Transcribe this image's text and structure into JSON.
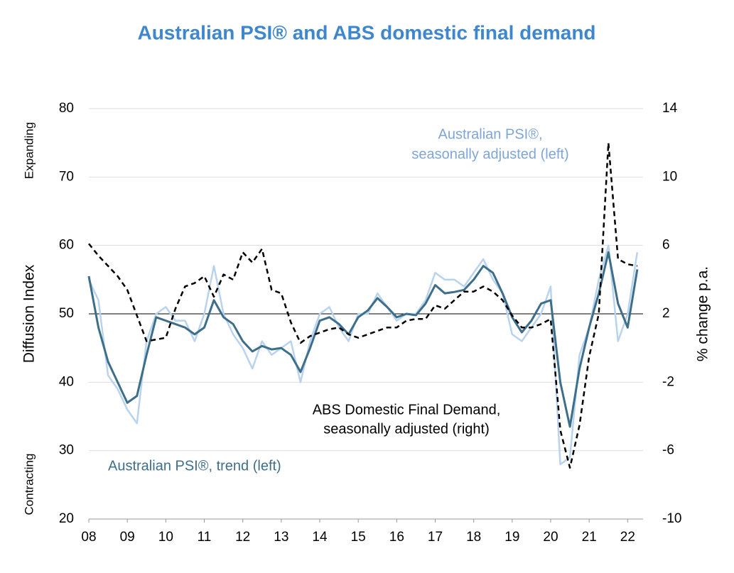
{
  "chart_data": {
    "type": "line",
    "title": "Australian PSI® and ABS domestic final demand",
    "y_label": "Diffusion Index",
    "y2_label": "% change p.a.",
    "side_labels": [
      "Expanding",
      "Contracting"
    ],
    "x": [
      2008,
      2008.25,
      2008.5,
      2008.75,
      2009,
      2009.25,
      2009.5,
      2009.75,
      2010,
      2010.25,
      2010.5,
      2010.75,
      2011,
      2011.25,
      2011.5,
      2011.75,
      2012,
      2012.25,
      2012.5,
      2012.75,
      2013,
      2013.25,
      2013.5,
      2013.75,
      2014,
      2014.25,
      2014.5,
      2014.75,
      2015,
      2015.25,
      2015.5,
      2015.75,
      2016,
      2016.25,
      2016.5,
      2016.75,
      2017,
      2017.25,
      2017.5,
      2017.75,
      2018,
      2018.25,
      2018.5,
      2018.75,
      2019,
      2019.25,
      2019.5,
      2019.75,
      2020,
      2020.25,
      2020.5,
      2020.75,
      2021,
      2021.25,
      2021.5,
      2021.75,
      2022,
      2022.25
    ],
    "xlim": [
      2008,
      2022.4
    ],
    "xticks": [
      {
        "value": 2008,
        "label": "08"
      },
      {
        "value": 2009,
        "label": "09"
      },
      {
        "value": 2010,
        "label": "10"
      },
      {
        "value": 2011,
        "label": "11"
      },
      {
        "value": 2012,
        "label": "12"
      },
      {
        "value": 2013,
        "label": "13"
      },
      {
        "value": 2014,
        "label": "14"
      },
      {
        "value": 2015,
        "label": "15"
      },
      {
        "value": 2016,
        "label": "16"
      },
      {
        "value": 2017,
        "label": "17"
      },
      {
        "value": 2018,
        "label": "18"
      },
      {
        "value": 2019,
        "label": "19"
      },
      {
        "value": 2020,
        "label": "20"
      },
      {
        "value": 2021,
        "label": "21"
      },
      {
        "value": 2022,
        "label": "22"
      }
    ],
    "ylim": [
      20,
      80
    ],
    "yticks": [
      20,
      30,
      40,
      50,
      60,
      70,
      80
    ],
    "y2lim": [
      -10,
      14
    ],
    "y2ticks": [
      -10,
      -6,
      -2,
      2,
      6,
      10,
      14
    ],
    "grid": true,
    "reference_line": 50,
    "series": [
      {
        "name": [
          "Australian PSI®,",
          "seasonally adjusted (left)"
        ],
        "color": "#b9d3ee",
        "dash": false,
        "width": 2.5,
        "values": [
          55,
          52,
          41,
          39,
          36,
          34,
          46,
          50,
          51,
          49,
          49,
          46,
          50,
          57,
          50,
          47,
          45,
          42,
          46,
          44,
          45,
          46,
          40,
          46,
          50,
          51,
          48,
          46,
          50,
          50,
          53,
          51,
          49,
          50,
          50,
          52,
          56,
          55,
          55,
          54,
          56,
          58,
          55,
          53,
          47,
          46,
          48,
          50,
          54,
          28,
          29,
          44,
          48,
          55,
          60,
          46,
          50,
          59
        ]
      },
      {
        "name": [
          "Australian PSI®, trend (left)"
        ],
        "color": "#3d6e8a",
        "dash": false,
        "width": 3,
        "values": [
          55.5,
          48,
          43,
          40,
          37,
          38,
          44,
          49.5,
          49,
          48.5,
          48,
          47,
          48,
          52,
          49.5,
          48.5,
          46,
          44.5,
          45.3,
          44.8,
          45,
          44,
          41.5,
          45,
          49,
          49.5,
          48.5,
          47,
          49.5,
          50.5,
          52.3,
          51,
          49.5,
          50,
          49.8,
          51.5,
          54.2,
          53,
          53.2,
          53.5,
          55,
          57,
          56,
          53,
          49.5,
          47.3,
          49,
          51.5,
          52,
          40,
          33.5,
          42,
          48,
          53,
          59,
          51.5,
          48,
          56.5
        ]
      },
      {
        "name": [
          "ABS Domestic Final Demand,",
          "seasonally adjusted (right)"
        ],
        "color": "#000000",
        "dash": true,
        "width": 2.5,
        "axis": "y2",
        "values": [
          6.1,
          5.4,
          4.8,
          4.2,
          3.4,
          1.9,
          0.4,
          0.5,
          0.6,
          2.3,
          3.6,
          3.8,
          4.2,
          3.0,
          4.3,
          4.0,
          5.6,
          5.0,
          5.8,
          3.4,
          3.2,
          1.5,
          0.3,
          0.7,
          0.9,
          1.1,
          1.2,
          0.8,
          0.6,
          0.8,
          1.0,
          1.2,
          1.2,
          1.6,
          1.7,
          1.7,
          2.5,
          2.3,
          2.8,
          3.3,
          3.3,
          3.6,
          3.3,
          2.8,
          1.9,
          1.2,
          1.2,
          1.4,
          1.7,
          -4.8,
          -7.0,
          -4.5,
          -0.5,
          2.0,
          12.0,
          5.2,
          4.9,
          4.8
        ]
      }
    ]
  }
}
